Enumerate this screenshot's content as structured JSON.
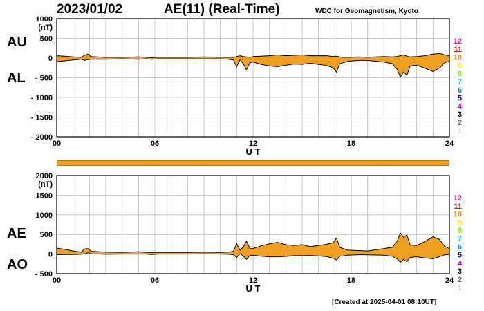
{
  "header": {
    "date": "2023/01/02",
    "title": "AE(11) (Real-Time)",
    "source": "WDC for Geomagnetism, Kyoto"
  },
  "footer": {
    "created": "[Created at 2025-04-01 08:10UT]"
  },
  "labels": {
    "au": "AU",
    "al": "AL",
    "ae": "AE",
    "ao": "AO"
  },
  "legend_numbers": [
    {
      "text": "12",
      "color": "#ff00aa"
    },
    {
      "text": "11",
      "color": "#ff0000"
    },
    {
      "text": "10",
      "color": "#ff8800"
    },
    {
      "text": "9",
      "color": "#ffee00"
    },
    {
      "text": "8",
      "color": "#88ee00"
    },
    {
      "text": "7",
      "color": "#00dddd"
    },
    {
      "text": "6",
      "color": "#0088ff"
    },
    {
      "text": "5",
      "color": "#0000cc"
    },
    {
      "text": "4",
      "color": "#cc00cc"
    },
    {
      "text": "3",
      "color": "#000000"
    },
    {
      "text": "2",
      "color": "#666666"
    },
    {
      "text": "1",
      "color": "#cccccc"
    }
  ],
  "colors": {
    "fill": "#f0a020",
    "line": "#000000",
    "grid": "#b8b8b8"
  },
  "chart_data": [
    {
      "type": "area",
      "xlabel": "U T",
      "ylabel": "(nT)",
      "xlim": [
        0,
        24
      ],
      "ylim": [
        -2000,
        1000
      ],
      "xticks": [
        0,
        6,
        12,
        18,
        24
      ],
      "xtick_labels": [
        "00",
        "06",
        "12",
        "18",
        "24"
      ],
      "yticks": [
        1000,
        500,
        0,
        -500,
        -1000,
        -1500,
        -2000
      ],
      "ytick_labels": [
        "1000",
        "500",
        "0",
        "- 500",
        "- 1000",
        "- 1500",
        "- 2000"
      ],
      "grid": true,
      "x": [
        0,
        0.5,
        1,
        1.5,
        1.7,
        1.9,
        2.1,
        3,
        4,
        5,
        5.5,
        5.8,
        6.2,
        7,
        8,
        9,
        10,
        10.5,
        10.8,
        11,
        11.2,
        11.4,
        11.6,
        11.8,
        12,
        12.5,
        13,
        13.5,
        14,
        14.5,
        15,
        15.5,
        16,
        16.5,
        16.9,
        17.1,
        17.3,
        17.5,
        17.8,
        18.5,
        19,
        19.5,
        20,
        20.5,
        20.8,
        21,
        21.2,
        21.4,
        21.6,
        22,
        22.5,
        23,
        23.4,
        23.7,
        24
      ],
      "series": [
        {
          "name": "AU",
          "values": [
            60,
            50,
            30,
            20,
            70,
            100,
            40,
            20,
            20,
            30,
            20,
            10,
            20,
            20,
            20,
            30,
            20,
            20,
            20,
            40,
            60,
            40,
            30,
            20,
            40,
            50,
            60,
            80,
            60,
            70,
            80,
            60,
            60,
            60,
            40,
            50,
            30,
            20,
            20,
            30,
            20,
            30,
            40,
            30,
            40,
            60,
            80,
            50,
            30,
            40,
            60,
            100,
            120,
            80,
            60
          ]
        },
        {
          "name": "AL",
          "values": [
            -90,
            -70,
            -50,
            -30,
            -60,
            -40,
            -30,
            -30,
            -20,
            -30,
            -20,
            -30,
            -20,
            -20,
            -20,
            -20,
            -20,
            -30,
            -50,
            -220,
            -40,
            -140,
            -300,
            -120,
            -100,
            -160,
            -200,
            -220,
            -180,
            -150,
            -160,
            -130,
            -160,
            -190,
            -250,
            -360,
            -140,
            -120,
            -80,
            -60,
            -60,
            -80,
            -100,
            -140,
            -280,
            -480,
            -350,
            -440,
            -200,
            -180,
            -260,
            -340,
            -250,
            -120,
            -80
          ]
        }
      ]
    },
    {
      "type": "area",
      "xlabel": "U T",
      "ylabel": "(nT)",
      "xlim": [
        0,
        24
      ],
      "ylim": [
        -500,
        2000
      ],
      "xticks": [
        0,
        6,
        12,
        18,
        24
      ],
      "xtick_labels": [
        "00",
        "06",
        "12",
        "18",
        "24"
      ],
      "yticks": [
        2000,
        1500,
        1000,
        500,
        0,
        -500
      ],
      "ytick_labels": [
        "2000",
        "1500",
        "1000",
        "500",
        "0",
        "- 500"
      ],
      "grid": true,
      "x": [
        0,
        0.5,
        1,
        1.5,
        1.7,
        1.9,
        2.1,
        3,
        4,
        5,
        5.5,
        5.8,
        6.2,
        7,
        8,
        9,
        10,
        10.5,
        10.8,
        11,
        11.2,
        11.4,
        11.6,
        11.8,
        12,
        12.5,
        13,
        13.5,
        14,
        14.5,
        15,
        15.5,
        16,
        16.5,
        16.9,
        17.1,
        17.3,
        17.5,
        17.8,
        18.5,
        19,
        19.5,
        20,
        20.5,
        20.8,
        21,
        21.2,
        21.4,
        21.6,
        22,
        22.5,
        23,
        23.4,
        23.7,
        24
      ],
      "series": [
        {
          "name": "AE",
          "values": [
            150,
            120,
            80,
            50,
            130,
            140,
            70,
            50,
            40,
            60,
            40,
            40,
            40,
            40,
            40,
            50,
            40,
            50,
            70,
            260,
            100,
            180,
            330,
            140,
            140,
            210,
            260,
            300,
            240,
            220,
            240,
            190,
            220,
            250,
            290,
            410,
            170,
            140,
            100,
            90,
            80,
            110,
            140,
            170,
            320,
            540,
            430,
            490,
            230,
            220,
            320,
            440,
            370,
            200,
            140
          ]
        },
        {
          "name": "AO",
          "values": [
            -15,
            -10,
            -10,
            -5,
            5,
            30,
            5,
            -5,
            0,
            0,
            0,
            -10,
            0,
            0,
            0,
            5,
            0,
            -5,
            -15,
            -90,
            10,
            -50,
            -135,
            -40,
            -30,
            -55,
            -70,
            -70,
            -60,
            -40,
            -40,
            -35,
            -50,
            -65,
            -105,
            -155,
            -55,
            -50,
            -30,
            -15,
            -20,
            -25,
            -30,
            -55,
            -120,
            -210,
            -135,
            -195,
            -85,
            -70,
            -100,
            -120,
            -65,
            -20,
            -10
          ]
        }
      ]
    }
  ]
}
